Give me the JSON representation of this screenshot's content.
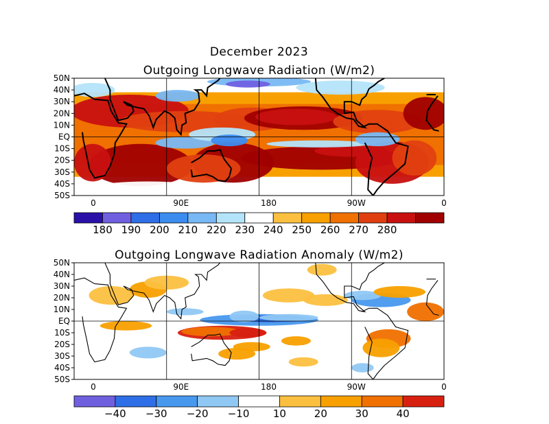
{
  "title": "December 2023",
  "panels": [
    {
      "id": "olr",
      "title": "Outgoing Longwave Radiation (W/m2)",
      "lat_ticks": [
        "50N",
        "40N",
        "30N",
        "20N",
        "10N",
        "EQ",
        "10S",
        "20S",
        "30S",
        "40S",
        "50S"
      ],
      "lon_ticks": [
        "0",
        "90E",
        "180",
        "90W",
        "0"
      ],
      "colorbar": {
        "colors": [
          "#2a10a8",
          "#7060e0",
          "#2e6ee6",
          "#3c8cf0",
          "#78b8f4",
          "#b4e4fa",
          "#ffffff",
          "#fcc040",
          "#f8a000",
          "#f07000",
          "#e04010",
          "#c81010",
          "#a00000"
        ],
        "labels": [
          "180",
          "190",
          "200",
          "210",
          "220",
          "230",
          "240",
          "250",
          "260",
          "270",
          "280"
        ]
      }
    },
    {
      "id": "anomaly",
      "title": "Outgoing Longwave Radiation Anomaly (W/m2)",
      "lat_ticks": [
        "50N",
        "40N",
        "30N",
        "20N",
        "10N",
        "EQ",
        "10S",
        "20S",
        "30S",
        "40S",
        "50S"
      ],
      "lon_ticks": [
        "0",
        "90E",
        "180",
        "90W",
        "0"
      ],
      "colorbar": {
        "colors": [
          "#7060e0",
          "#2e6ee6",
          "#4898ee",
          "#90c8f4",
          "#ffffff",
          "#fcc040",
          "#f8a000",
          "#f07000",
          "#d82010"
        ],
        "labels": [
          "−40",
          "−30",
          "−20",
          "−10",
          "10",
          "20",
          "30",
          "40"
        ]
      }
    }
  ]
}
